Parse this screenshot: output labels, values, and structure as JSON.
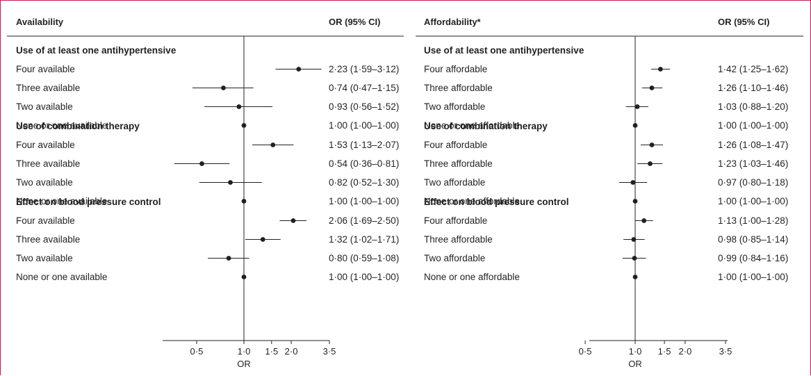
{
  "chart_data": [
    {
      "type": "forest",
      "title": "Availability",
      "column_header": "OR (95% CI)",
      "xlabel": "OR",
      "xticks": [
        "0·5",
        "1·0",
        "1·5",
        "2·0",
        "3·5"
      ],
      "xtick_values": [
        0.5,
        1.0,
        1.5,
        2.0,
        3.5
      ],
      "xlim": [
        0.35,
        3.5
      ],
      "scale": "log",
      "reference_line": 1.0,
      "sections": [
        {
          "title": "Use of at least one antihypertensive",
          "rows": [
            {
              "label": "Four available",
              "or": 2.23,
              "lo": 1.59,
              "hi": 3.12,
              "text": "2·23 (1·59–3·12)"
            },
            {
              "label": "Three available",
              "or": 0.74,
              "lo": 0.47,
              "hi": 1.15,
              "text": "0·74 (0·47–1·15)"
            },
            {
              "label": "Two available",
              "or": 0.93,
              "lo": 0.56,
              "hi": 1.52,
              "text": "0·93 (0·56–1·52)"
            },
            {
              "label": "None or one available",
              "or": 1.0,
              "lo": 1.0,
              "hi": 1.0,
              "text": "1·00 (1·00–1·00)"
            }
          ]
        },
        {
          "title": "Use of combination therapy",
          "rows": [
            {
              "label": "Four available",
              "or": 1.53,
              "lo": 1.13,
              "hi": 2.07,
              "text": "1·53 (1·13–2·07)"
            },
            {
              "label": "Three available",
              "or": 0.54,
              "lo": 0.36,
              "hi": 0.81,
              "text": "0·54 (0·36–0·81)"
            },
            {
              "label": "Two available",
              "or": 0.82,
              "lo": 0.52,
              "hi": 1.3,
              "text": "0·82 (0·52–1·30)"
            },
            {
              "label": "None or one available",
              "or": 1.0,
              "lo": 1.0,
              "hi": 1.0,
              "text": "1·00 (1·00–1·00)"
            }
          ]
        },
        {
          "title": "Effect on blood pressure control",
          "rows": [
            {
              "label": "Four available",
              "or": 2.06,
              "lo": 1.69,
              "hi": 2.5,
              "text": "2·06 (1·69–2·50)"
            },
            {
              "label": "Three available",
              "or": 1.32,
              "lo": 1.02,
              "hi": 1.71,
              "text": "1·32 (1·02–1·71)"
            },
            {
              "label": "Two available",
              "or": 0.8,
              "lo": 0.59,
              "hi": 1.08,
              "text": "0·80 (0·59–1·08)"
            },
            {
              "label": "None or one available",
              "or": 1.0,
              "lo": 1.0,
              "hi": 1.0,
              "text": "1·00 (1·00–1·00)"
            }
          ]
        }
      ]
    },
    {
      "type": "forest",
      "title": "Affordability*",
      "column_header": "OR (95% CI)",
      "xlabel": "OR",
      "xticks": [
        "0·5",
        "1·0",
        "1·5",
        "2·0",
        "3·5"
      ],
      "xtick_values": [
        0.5,
        1.0,
        1.5,
        2.0,
        3.5
      ],
      "xlim": [
        0.5,
        3.5
      ],
      "scale": "log",
      "reference_line": 1.0,
      "sections": [
        {
          "title": "Use of at least one antihypertensive",
          "rows": [
            {
              "label": "Four affordable",
              "or": 1.42,
              "lo": 1.25,
              "hi": 1.62,
              "text": "1·42 (1·25–1·62)"
            },
            {
              "label": "Three affordable",
              "or": 1.26,
              "lo": 1.1,
              "hi": 1.46,
              "text": "1·26 (1·10–1·46)"
            },
            {
              "label": "Two affordable",
              "or": 1.03,
              "lo": 0.88,
              "hi": 1.2,
              "text": "1·03 (0·88–1·20)"
            },
            {
              "label": "None or one affordable",
              "or": 1.0,
              "lo": 1.0,
              "hi": 1.0,
              "text": "1·00 (1·00–1·00)"
            }
          ]
        },
        {
          "title": "Use of combination therapy",
          "rows": [
            {
              "label": "Four affordable",
              "or": 1.26,
              "lo": 1.08,
              "hi": 1.47,
              "text": "1·26 (1·08–1·47)"
            },
            {
              "label": "Three affordable",
              "or": 1.23,
              "lo": 1.03,
              "hi": 1.46,
              "text": "1·23 (1·03–1·46)"
            },
            {
              "label": "Two affordable",
              "or": 0.97,
              "lo": 0.8,
              "hi": 1.18,
              "text": "0·97 (0·80–1·18)"
            },
            {
              "label": "None or one affordable",
              "or": 1.0,
              "lo": 1.0,
              "hi": 1.0,
              "text": "1·00 (1·00–1·00)"
            }
          ]
        },
        {
          "title": "Effect on blood pressure control",
          "rows": [
            {
              "label": "Four affordable",
              "or": 1.13,
              "lo": 1.0,
              "hi": 1.28,
              "text": "1·13 (1·00–1·28)"
            },
            {
              "label": "Three affordable",
              "or": 0.98,
              "lo": 0.85,
              "hi": 1.14,
              "text": "0·98 (0·85–1·14)"
            },
            {
              "label": "Two affordable",
              "or": 0.99,
              "lo": 0.84,
              "hi": 1.16,
              "text": "0·99 (0·84–1·16)"
            },
            {
              "label": "None or one affordable",
              "or": 1.0,
              "lo": 1.0,
              "hi": 1.0,
              "text": "1·00 (1·00–1·00)"
            }
          ]
        }
      ]
    }
  ],
  "colors": {
    "frame": "#c2185b",
    "ink": "#231f20"
  }
}
